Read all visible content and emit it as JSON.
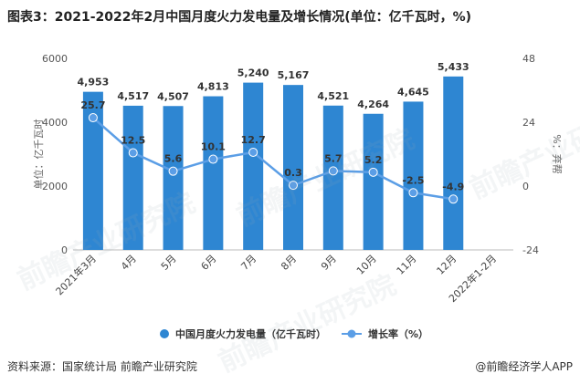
{
  "title": "图表3：2021-2022年2月中国月度火力发电量及增长情况(单位：亿千瓦时，%)",
  "footer": {
    "source": "资料来源：国家统计局 前瞻产业研究院",
    "brand": "@前瞻经济学人APP"
  },
  "watermark": "前瞻产业研究院",
  "colors": {
    "bar": "#2e86d2",
    "line": "#5b9ee6",
    "marker": "#5b9ee6"
  },
  "chart_data": {
    "type": "bar",
    "categories": [
      "2021年3月",
      "4月",
      "5月",
      "6月",
      "7月",
      "8月",
      "9月",
      "10月",
      "11月",
      "12月",
      "2022年1-2月"
    ],
    "series": [
      {
        "name": "中国月度火力发电量（亿千瓦时）",
        "type": "bar",
        "axis": "left",
        "values": [
          4953,
          4517,
          4507,
          4813,
          5240,
          5167,
          4521,
          4264,
          4645,
          5433,
          null
        ],
        "labels": [
          "4,953",
          "4,517",
          "4,507",
          "4,813",
          "5,240",
          "5,167",
          "4,521",
          "4,264",
          "4,645",
          "5,433",
          ""
        ]
      },
      {
        "name": "增长率（%）",
        "type": "line",
        "axis": "right",
        "values": [
          25.7,
          12.5,
          5.6,
          10.1,
          12.7,
          0.3,
          5.7,
          5.2,
          -2.5,
          -4.9,
          null
        ],
        "labels": [
          "25.7",
          "12.5",
          "5.6",
          "10.1",
          "12.7",
          "0.3",
          "5.7",
          "5.2",
          "-2.5",
          "-4.9",
          ""
        ]
      }
    ],
    "ylabel": "单位：亿千瓦时",
    "y2label": "%：弃帮",
    "ylim": [
      0,
      6000
    ],
    "y2lim": [
      -24,
      48
    ],
    "yticks": [
      "0",
      "2000",
      "4000",
      "6000"
    ],
    "y2ticks": [
      "-24",
      "0",
      "24",
      "48"
    ],
    "grid": false,
    "legend": "bottom"
  }
}
